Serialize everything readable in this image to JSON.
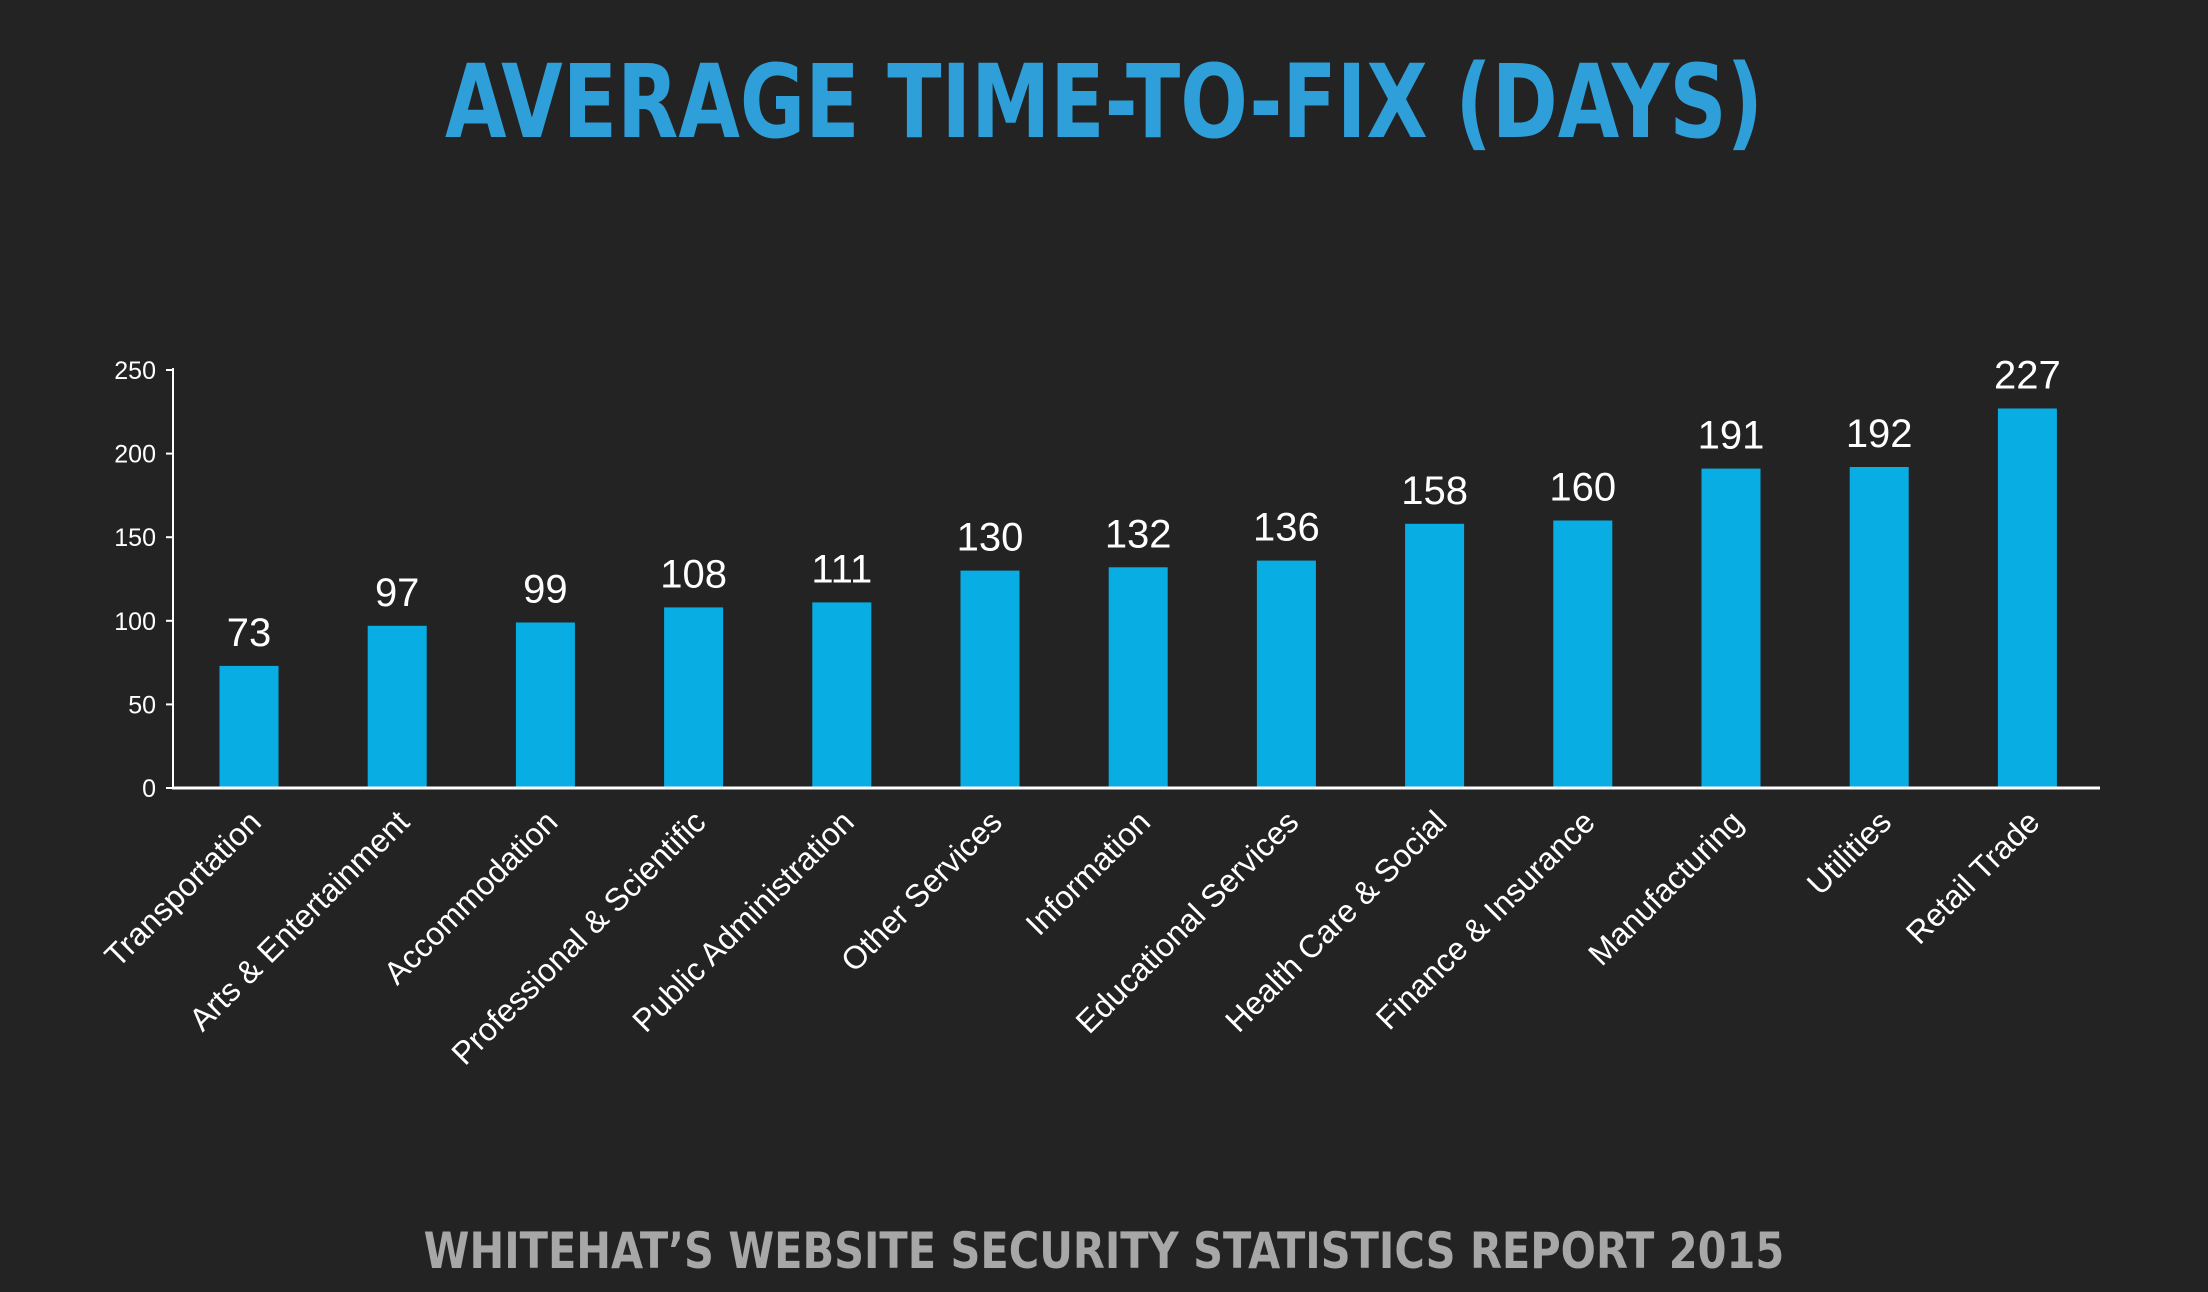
{
  "title": "AVERAGE TIME-TO-FIX (DAYS)",
  "footer": "WHITEHAT’S WEBSITE SECURITY STATISTICS REPORT 2015",
  "colors": {
    "background": "#232323",
    "title": "#2e9fd9",
    "bar": "#08aee3",
    "axis": "#ffffff",
    "text": "#ffffff",
    "footer": "#a7a7a7"
  },
  "chart_data": {
    "type": "bar",
    "title": "AVERAGE TIME-TO-FIX (DAYS)",
    "xlabel": "",
    "ylabel": "",
    "categories": [
      "Transportation",
      "Arts & Entertainment",
      "Accommodation",
      "Professional & Scientific",
      "Public Administration",
      "Other Services",
      "Information",
      "Educational Services",
      "Health Care & Social",
      "Finance & Insurance",
      "Manufacturing",
      "Utilities",
      "Retail Trade"
    ],
    "values": [
      73,
      97,
      99,
      108,
      111,
      130,
      132,
      136,
      158,
      160,
      191,
      192,
      227
    ],
    "ylim": [
      0,
      250
    ],
    "yticks": [
      0,
      50,
      100,
      150,
      200,
      250
    ],
    "grid": false,
    "legend": "none",
    "data_labels": true
  }
}
